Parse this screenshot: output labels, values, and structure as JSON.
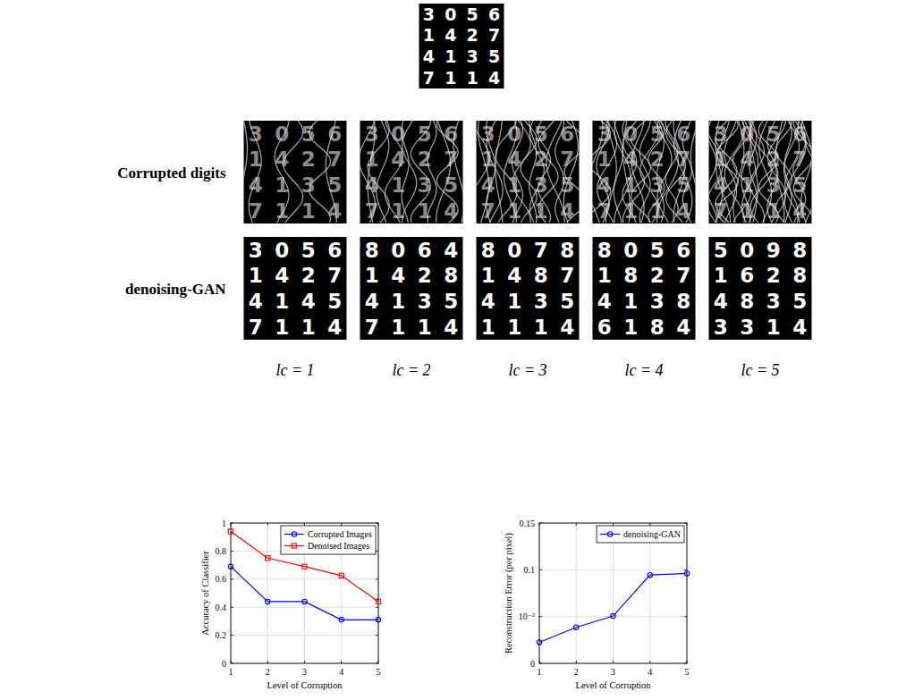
{
  "figure": {
    "row_labels": [
      "Corrupted digits",
      "denoising-GAN"
    ],
    "column_labels": [
      "lc = 1",
      "lc = 2",
      "lc = 3",
      "lc = 4",
      "lc = 5"
    ],
    "clean_digits": [
      "3056",
      "1427",
      "4135",
      "7114"
    ],
    "denoised_digits": [
      [
        "3056",
        "1427",
        "4145",
        "7114"
      ],
      [
        "8064",
        "1428",
        "4135",
        "7114"
      ],
      [
        "8078",
        "1487",
        "4135",
        "1114"
      ],
      [
        "8056",
        "1827",
        "4138",
        "6184"
      ],
      [
        "5098",
        "1628",
        "4835",
        "3314"
      ]
    ]
  },
  "chart_data": [
    {
      "type": "line",
      "x_label": "Level of Corruption",
      "y_label": "Accuracy of Classifier",
      "x": [
        1,
        2,
        3,
        4,
        5
      ],
      "series": [
        {
          "name": "Corrupted Images",
          "color": "#0000ff",
          "marker": "circle",
          "values": [
            0.69,
            0.44,
            0.44,
            0.31,
            0.31
          ]
        },
        {
          "name": "Denoised Images",
          "color": "#ff0000",
          "marker": "square",
          "values": [
            0.94,
            0.75,
            0.69,
            0.625,
            0.44
          ]
        }
      ],
      "xlim": [
        1,
        5
      ],
      "xticks": [
        1,
        2,
        3,
        4,
        5
      ],
      "ylim": [
        0,
        1
      ],
      "yticks": [
        0,
        0.2,
        0.4,
        0.6,
        0.8,
        1
      ],
      "grid": true,
      "legend": "top-right"
    },
    {
      "type": "line",
      "x_label": "Level of Corruption",
      "y_label": "Reconstruction Error (per pixel)",
      "x": [
        1,
        2,
        3,
        4,
        5
      ],
      "series": [
        {
          "name": "denoising-GAN",
          "color": "#0000ff",
          "marker": "circle",
          "values": [
            0.0045,
            0.0077,
            0.011,
            0.09,
            0.093
          ]
        }
      ],
      "xlim": [
        1,
        5
      ],
      "xticks": [
        1,
        2,
        3,
        4,
        5
      ],
      "ylim": [
        0,
        0.15
      ],
      "yticks": [
        0,
        {
          "value": 0.01,
          "label": "10⁻²"
        },
        0.1,
        0.15
      ],
      "grid": true,
      "legend": "top-right"
    }
  ]
}
